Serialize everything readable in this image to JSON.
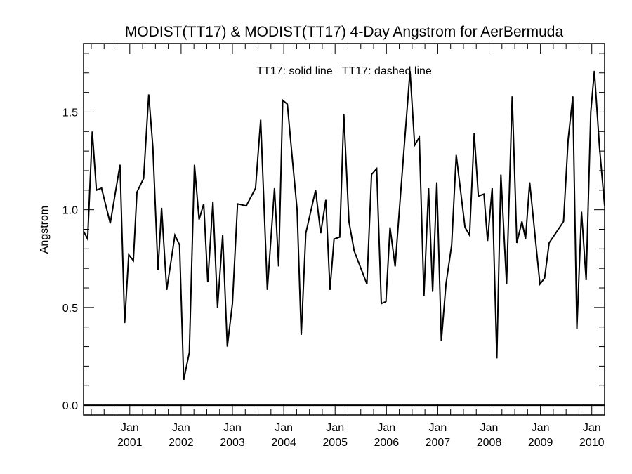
{
  "chart_data": {
    "type": "line",
    "title": "MODIST(TT17) & MODIST(TT17) 4-Day Angstrom for AerBermuda",
    "annotation": "TT17: solid line   TT17: dashed line",
    "xlabel": "",
    "ylabel": "Angstrom",
    "ylim": [
      -0.05,
      1.85
    ],
    "xlim": [
      2000.1,
      2010.25
    ],
    "grid": false,
    "y_ticks": [
      0.0,
      0.5,
      1.0,
      1.5
    ],
    "y_tick_labels": [
      "0.0",
      "0.5",
      "1.0",
      "1.5"
    ],
    "x_ticks": [
      {
        "value": 2001.0,
        "month": "Jan",
        "year": "2001"
      },
      {
        "value": 2002.0,
        "month": "Jan",
        "year": "2002"
      },
      {
        "value": 2003.0,
        "month": "Jan",
        "year": "2003"
      },
      {
        "value": 2004.0,
        "month": "Jan",
        "year": "2004"
      },
      {
        "value": 2005.0,
        "month": "Jan",
        "year": "2005"
      },
      {
        "value": 2006.0,
        "month": "Jan",
        "year": "2006"
      },
      {
        "value": 2007.0,
        "month": "Jan",
        "year": "2007"
      },
      {
        "value": 2008.0,
        "month": "Jan",
        "year": "2008"
      },
      {
        "value": 2009.0,
        "month": "Jan",
        "year": "2009"
      },
      {
        "value": 2010.0,
        "month": "Jan",
        "year": "2010"
      }
    ],
    "reference_line": 0.0,
    "series": [
      {
        "style": "solid",
        "color": "#000000",
        "x": [
          2000.1,
          2000.18,
          2000.27,
          2000.35,
          2000.45,
          2000.62,
          2000.81,
          2000.9,
          2000.98,
          2001.07,
          2001.14,
          2001.27,
          2001.37,
          2001.45,
          2001.55,
          2001.62,
          2001.72,
          2001.88,
          2001.97,
          2002.05,
          2002.16,
          2002.26,
          2002.35,
          2002.44,
          2002.52,
          2002.62,
          2002.71,
          2002.81,
          2002.9,
          2003.0,
          2003.1,
          2003.27,
          2003.45,
          2003.55,
          2003.68,
          2003.82,
          2003.9,
          2003.98,
          2004.07,
          2004.16,
          2004.26,
          2004.34,
          2004.43,
          2004.62,
          2004.72,
          2004.82,
          2004.9,
          2004.98,
          2005.09,
          2005.17,
          2005.27,
          2005.37,
          2005.62,
          2005.71,
          2005.81,
          2005.9,
          2005.99,
          2006.07,
          2006.17,
          2006.27,
          2006.46,
          2006.55,
          2006.64,
          2006.73,
          2006.82,
          2006.9,
          2006.98,
          2007.07,
          2007.16,
          2007.27,
          2007.36,
          2007.53,
          2007.62,
          2007.71,
          2007.79,
          2007.9,
          2007.97,
          2008.06,
          2008.15,
          2008.23,
          2008.34,
          2008.45,
          2008.54,
          2008.64,
          2008.71,
          2008.79,
          2008.99,
          2009.08,
          2009.17,
          2009.45,
          2009.54,
          2009.63,
          2009.71,
          2009.8,
          2009.89,
          2009.98,
          2010.05,
          2010.15,
          2010.25
        ],
        "values": [
          0.89,
          0.85,
          1.4,
          1.1,
          1.11,
          0.93,
          1.23,
          0.42,
          0.77,
          0.74,
          1.09,
          1.16,
          1.59,
          1.32,
          0.69,
          1.01,
          0.59,
          0.87,
          0.82,
          0.13,
          0.27,
          1.23,
          0.95,
          1.03,
          0.63,
          1.04,
          0.5,
          0.87,
          0.3,
          0.52,
          1.03,
          1.02,
          1.11,
          1.46,
          0.59,
          1.11,
          0.71,
          1.56,
          1.54,
          1.28,
          1.0,
          0.36,
          0.88,
          1.1,
          0.88,
          1.05,
          0.59,
          0.85,
          0.86,
          1.49,
          0.94,
          0.79,
          0.62,
          1.18,
          1.21,
          0.52,
          0.53,
          0.91,
          0.71,
          1.06,
          1.71,
          1.33,
          1.37,
          0.56,
          1.11,
          0.58,
          1.14,
          0.33,
          0.62,
          0.82,
          1.28,
          0.91,
          0.87,
          1.39,
          1.07,
          1.08,
          0.84,
          1.11,
          0.24,
          1.18,
          0.62,
          1.58,
          0.83,
          0.94,
          0.85,
          1.14,
          0.62,
          0.65,
          0.83,
          0.94,
          1.36,
          1.58,
          0.39,
          0.99,
          0.64,
          1.5,
          1.71,
          1.32,
          1.02
        ]
      }
    ]
  }
}
